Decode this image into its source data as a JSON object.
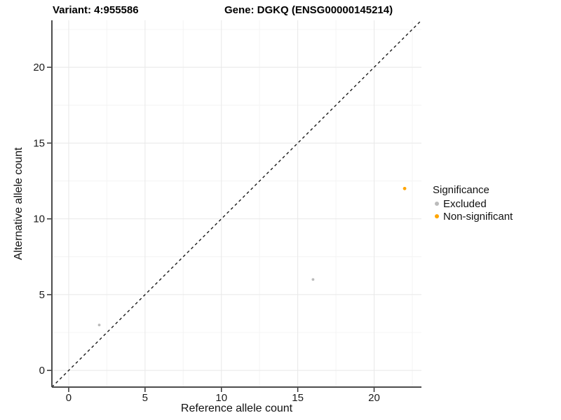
{
  "header": {
    "title_left": "Variant: 4:955586",
    "title_right": "Gene: DGKQ (ENSG00000145214)"
  },
  "chart_data": {
    "type": "scatter",
    "title": "Variant: 4:955586 — Gene: DGKQ (ENSG00000145214)",
    "xlabel": "Reference allele count",
    "ylabel": "Alternative allele count",
    "xlim": [
      -1.1,
      23.1
    ],
    "ylim": [
      -1.1,
      23.1
    ],
    "x_ticks": [
      0,
      5,
      10,
      15,
      20
    ],
    "y_ticks": [
      0,
      5,
      10,
      15,
      20
    ],
    "x_minor_ticks": [
      2.5,
      7.5,
      12.5,
      17.5,
      22.5
    ],
    "y_minor_ticks": [
      2.5,
      7.5,
      12.5,
      17.5,
      22.5
    ],
    "grid": "major+minor",
    "identity_line": {
      "slope": 1,
      "intercept": 0,
      "style": "dashed",
      "color": "#1a1a1a"
    },
    "series": [
      {
        "name": "Excluded",
        "color": "#bbbbbb",
        "point_radius": 1.9,
        "points": [
          {
            "x": 2,
            "y": 3
          },
          {
            "x": 16,
            "y": 6
          }
        ]
      },
      {
        "name": "Non-significant",
        "color": "#ffa500",
        "point_radius": 2.4,
        "points": [
          {
            "x": 22,
            "y": 12
          }
        ]
      }
    ],
    "legend": {
      "title": "Significance",
      "position": "right",
      "entries": [
        {
          "label": "Excluded",
          "color": "#bbbbbb"
        },
        {
          "label": "Non-significant",
          "color": "#ffa500"
        }
      ]
    },
    "style": {
      "axis_line_color": "#4d4d4d",
      "tick_color": "#333333",
      "grid_major_color": "#e8e8e8",
      "grid_minor_color": "#f4f4f4"
    }
  }
}
